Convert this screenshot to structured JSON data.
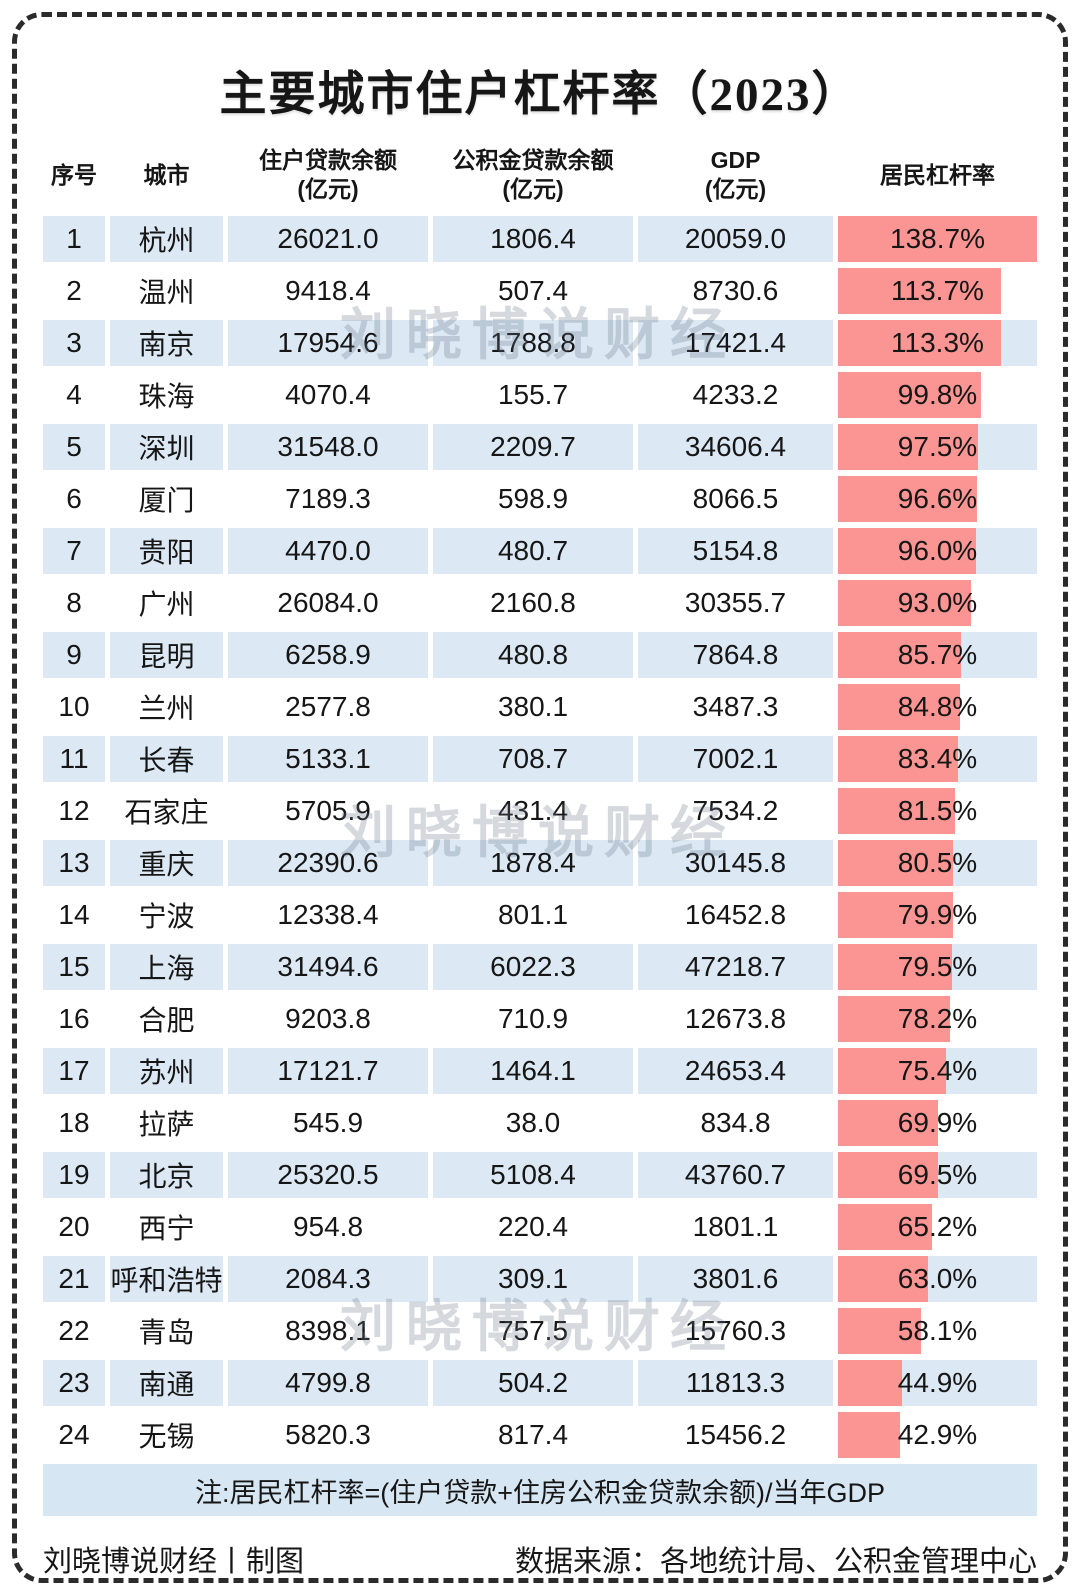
{
  "title": "主要城市住户杠杆率（2023）",
  "watermark": "刘晓博说财经",
  "colors": {
    "bar": "#FB9593",
    "row_alt": "#DCE9F4",
    "note_bg": "#D7E6F3"
  },
  "table": {
    "headers": [
      {
        "line1": "序号",
        "line2": ""
      },
      {
        "line1": "城市",
        "line2": ""
      },
      {
        "line1": "住户贷款余额",
        "line2": "(亿元)"
      },
      {
        "line1": "公积金贷款余额",
        "line2": "(亿元)"
      },
      {
        "line1": "GDP",
        "line2": "(亿元)"
      },
      {
        "line1": "居民杠杆率",
        "line2": ""
      }
    ],
    "max_ratio": 138.7,
    "rows": [
      {
        "no": "1",
        "city": "杭州",
        "household_loan": "26021.0",
        "fund_loan": "1806.4",
        "gdp": "20059.0",
        "ratio": 138.7,
        "ratio_label": "138.7%"
      },
      {
        "no": "2",
        "city": "温州",
        "household_loan": "9418.4",
        "fund_loan": "507.4",
        "gdp": "8730.6",
        "ratio": 113.7,
        "ratio_label": "113.7%"
      },
      {
        "no": "3",
        "city": "南京",
        "household_loan": "17954.6",
        "fund_loan": "1788.8",
        "gdp": "17421.4",
        "ratio": 113.3,
        "ratio_label": "113.3%"
      },
      {
        "no": "4",
        "city": "珠海",
        "household_loan": "4070.4",
        "fund_loan": "155.7",
        "gdp": "4233.2",
        "ratio": 99.8,
        "ratio_label": "99.8%"
      },
      {
        "no": "5",
        "city": "深圳",
        "household_loan": "31548.0",
        "fund_loan": "2209.7",
        "gdp": "34606.4",
        "ratio": 97.5,
        "ratio_label": "97.5%"
      },
      {
        "no": "6",
        "city": "厦门",
        "household_loan": "7189.3",
        "fund_loan": "598.9",
        "gdp": "8066.5",
        "ratio": 96.6,
        "ratio_label": "96.6%"
      },
      {
        "no": "7",
        "city": "贵阳",
        "household_loan": "4470.0",
        "fund_loan": "480.7",
        "gdp": "5154.8",
        "ratio": 96.0,
        "ratio_label": "96.0%"
      },
      {
        "no": "8",
        "city": "广州",
        "household_loan": "26084.0",
        "fund_loan": "2160.8",
        "gdp": "30355.7",
        "ratio": 93.0,
        "ratio_label": "93.0%"
      },
      {
        "no": "9",
        "city": "昆明",
        "household_loan": "6258.9",
        "fund_loan": "480.8",
        "gdp": "7864.8",
        "ratio": 85.7,
        "ratio_label": "85.7%"
      },
      {
        "no": "10",
        "city": "兰州",
        "household_loan": "2577.8",
        "fund_loan": "380.1",
        "gdp": "3487.3",
        "ratio": 84.8,
        "ratio_label": "84.8%"
      },
      {
        "no": "11",
        "city": "长春",
        "household_loan": "5133.1",
        "fund_loan": "708.7",
        "gdp": "7002.1",
        "ratio": 83.4,
        "ratio_label": "83.4%"
      },
      {
        "no": "12",
        "city": "石家庄",
        "household_loan": "5705.9",
        "fund_loan": "431.4",
        "gdp": "7534.2",
        "ratio": 81.5,
        "ratio_label": "81.5%"
      },
      {
        "no": "13",
        "city": "重庆",
        "household_loan": "22390.6",
        "fund_loan": "1878.4",
        "gdp": "30145.8",
        "ratio": 80.5,
        "ratio_label": "80.5%"
      },
      {
        "no": "14",
        "city": "宁波",
        "household_loan": "12338.4",
        "fund_loan": "801.1",
        "gdp": "16452.8",
        "ratio": 79.9,
        "ratio_label": "79.9%"
      },
      {
        "no": "15",
        "city": "上海",
        "household_loan": "31494.6",
        "fund_loan": "6022.3",
        "gdp": "47218.7",
        "ratio": 79.5,
        "ratio_label": "79.5%"
      },
      {
        "no": "16",
        "city": "合肥",
        "household_loan": "9203.8",
        "fund_loan": "710.9",
        "gdp": "12673.8",
        "ratio": 78.2,
        "ratio_label": "78.2%"
      },
      {
        "no": "17",
        "city": "苏州",
        "household_loan": "17121.7",
        "fund_loan": "1464.1",
        "gdp": "24653.4",
        "ratio": 75.4,
        "ratio_label": "75.4%"
      },
      {
        "no": "18",
        "city": "拉萨",
        "household_loan": "545.9",
        "fund_loan": "38.0",
        "gdp": "834.8",
        "ratio": 69.9,
        "ratio_label": "69.9%"
      },
      {
        "no": "19",
        "city": "北京",
        "household_loan": "25320.5",
        "fund_loan": "5108.4",
        "gdp": "43760.7",
        "ratio": 69.5,
        "ratio_label": "69.5%"
      },
      {
        "no": "20",
        "city": "西宁",
        "household_loan": "954.8",
        "fund_loan": "220.4",
        "gdp": "1801.1",
        "ratio": 65.2,
        "ratio_label": "65.2%"
      },
      {
        "no": "21",
        "city": "呼和浩特",
        "household_loan": "2084.3",
        "fund_loan": "309.1",
        "gdp": "3801.6",
        "ratio": 63.0,
        "ratio_label": "63.0%"
      },
      {
        "no": "22",
        "city": "青岛",
        "household_loan": "8398.1",
        "fund_loan": "757.5",
        "gdp": "15760.3",
        "ratio": 58.1,
        "ratio_label": "58.1%"
      },
      {
        "no": "23",
        "city": "南通",
        "household_loan": "4799.8",
        "fund_loan": "504.2",
        "gdp": "11813.3",
        "ratio": 44.9,
        "ratio_label": "44.9%"
      },
      {
        "no": "24",
        "city": "无锡",
        "household_loan": "5820.3",
        "fund_loan": "817.4",
        "gdp": "15456.2",
        "ratio": 42.9,
        "ratio_label": "42.9%"
      }
    ]
  },
  "note": "注:居民杠杆率=(住户贷款+住房公积金贷款余额)/当年GDP",
  "footer": {
    "left": "刘晓博说财经丨制图",
    "right": "数据来源：各地统计局、公积金管理中心"
  },
  "chart_data": {
    "type": "bar",
    "title": "主要城市住户杠杆率（2023）",
    "orientation": "horizontal",
    "categories": [
      "杭州",
      "温州",
      "南京",
      "珠海",
      "深圳",
      "厦门",
      "贵阳",
      "广州",
      "昆明",
      "兰州",
      "长春",
      "石家庄",
      "重庆",
      "宁波",
      "上海",
      "合肥",
      "苏州",
      "拉萨",
      "北京",
      "西宁",
      "呼和浩特",
      "青岛",
      "南通",
      "无锡"
    ],
    "series": [
      {
        "name": "住户贷款余额(亿元)",
        "values": [
          26021.0,
          9418.4,
          17954.6,
          4070.4,
          31548.0,
          7189.3,
          4470.0,
          26084.0,
          6258.9,
          2577.8,
          5133.1,
          5705.9,
          22390.6,
          12338.4,
          31494.6,
          9203.8,
          17121.7,
          545.9,
          25320.5,
          954.8,
          2084.3,
          8398.1,
          4799.8,
          5820.3
        ]
      },
      {
        "name": "公积金贷款余额(亿元)",
        "values": [
          1806.4,
          507.4,
          1788.8,
          155.7,
          2209.7,
          598.9,
          480.7,
          2160.8,
          480.8,
          380.1,
          708.7,
          431.4,
          1878.4,
          801.1,
          6022.3,
          710.9,
          1464.1,
          38.0,
          5108.4,
          220.4,
          309.1,
          757.5,
          504.2,
          817.4
        ]
      },
      {
        "name": "GDP(亿元)",
        "values": [
          20059.0,
          8730.6,
          17421.4,
          4233.2,
          34606.4,
          8066.5,
          5154.8,
          30355.7,
          7864.8,
          3487.3,
          7002.1,
          7534.2,
          30145.8,
          16452.8,
          47218.7,
          12673.8,
          24653.4,
          834.8,
          43760.7,
          1801.1,
          3801.6,
          15760.3,
          11813.3,
          15456.2
        ]
      },
      {
        "name": "居民杠杆率(%)",
        "values": [
          138.7,
          113.7,
          113.3,
          99.8,
          97.5,
          96.6,
          96.0,
          93.0,
          85.7,
          84.8,
          83.4,
          81.5,
          80.5,
          79.9,
          79.5,
          78.2,
          75.4,
          69.9,
          69.5,
          65.2,
          63.0,
          58.1,
          44.9,
          42.9
        ]
      }
    ],
    "bar_column": "居民杠杆率(%)",
    "xlim": [
      0,
      138.7
    ],
    "note": "注:居民杠杆率=(住户贷款+住房公积金贷款余额)/当年GDP",
    "source": "数据来源：各地统计局、公积金管理中心"
  }
}
